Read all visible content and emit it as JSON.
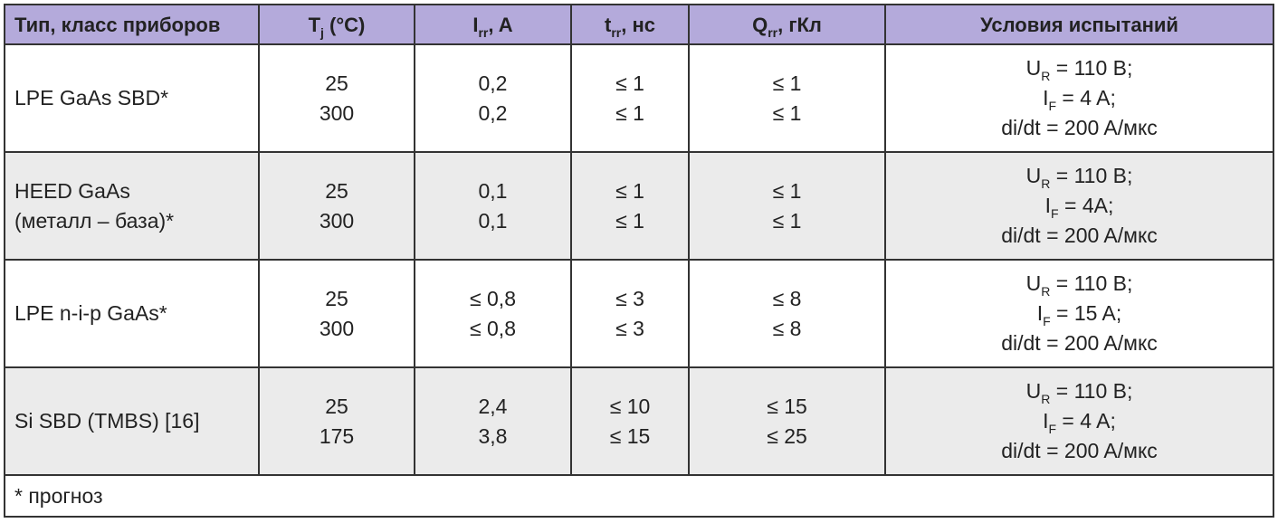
{
  "table": {
    "header": [
      {
        "main": "Тип, класс приборов"
      },
      {
        "main": "T",
        "sub": "j",
        "rest": " (°C)"
      },
      {
        "main": "I",
        "sub": "rr",
        "rest": ", A"
      },
      {
        "main": "t",
        "sub": "rr",
        "rest": ", нс"
      },
      {
        "main": "Q",
        "sub": "rr",
        "rest": ", гКл"
      },
      {
        "main": "Условия испытаний"
      }
    ],
    "rows": [
      {
        "type": [
          "LPE GaAs SBD*"
        ],
        "tj": [
          "25",
          "300"
        ],
        "irr": [
          "0,2",
          "0,2"
        ],
        "trr": [
          "≤ 1",
          "≤ 1"
        ],
        "qrr": [
          "≤ 1",
          "≤ 1"
        ],
        "conditions": [
          {
            "main": "U",
            "sub": "R",
            "rest": " = 110 В;"
          },
          {
            "main": "I",
            "sub": "F",
            "rest": " = 4 A;"
          },
          {
            "main": "di/dt = 200 A/мкс"
          }
        ]
      },
      {
        "type": [
          "HEED GaAs",
          "(металл – база)*"
        ],
        "tj": [
          "25",
          "300"
        ],
        "irr": [
          "0,1",
          "0,1"
        ],
        "trr": [
          "≤ 1",
          "≤ 1"
        ],
        "qrr": [
          "≤ 1",
          "≤ 1"
        ],
        "conditions": [
          {
            "main": "U",
            "sub": "R",
            "rest": " = 110 В;"
          },
          {
            "main": "I",
            "sub": "F",
            "rest": " = 4A;"
          },
          {
            "main": "di/dt = 200 A/мкс"
          }
        ]
      },
      {
        "type": [
          "LPE n-i-p GaAs*"
        ],
        "tj": [
          "25",
          "300"
        ],
        "irr": [
          "≤ 0,8",
          "≤ 0,8"
        ],
        "trr": [
          "≤ 3",
          "≤ 3"
        ],
        "qrr": [
          "≤ 8",
          "≤ 8"
        ],
        "conditions": [
          {
            "main": "U",
            "sub": "R",
            "rest": " = 110 В;"
          },
          {
            "main": "I",
            "sub": "F",
            "rest": " = 15 A;"
          },
          {
            "main": "di/dt = 200 A/мкс"
          }
        ]
      },
      {
        "type": [
          "Si SBD (TMBS) [16]"
        ],
        "tj": [
          "25",
          "175"
        ],
        "irr": [
          "2,4",
          "3,8"
        ],
        "trr": [
          "≤ 10",
          "≤ 15"
        ],
        "qrr": [
          "≤ 15",
          "≤ 25"
        ],
        "conditions": [
          {
            "main": "U",
            "sub": "R",
            "rest": " = 110 В;"
          },
          {
            "main": "I",
            "sub": "F",
            "rest": " = 4 A;"
          },
          {
            "main": "di/dt = 200 A/мкс"
          }
        ]
      }
    ],
    "footnote": "* прогноз"
  }
}
